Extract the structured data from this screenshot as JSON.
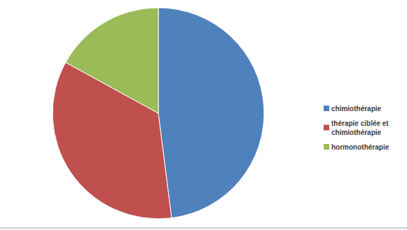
{
  "chart_data": {
    "type": "pie",
    "categories": [
      "chimiothérapie",
      "thérapie ciblée et chimiothérapie",
      "hormonothérapie"
    ],
    "values": [
      48,
      35,
      17
    ],
    "colors": [
      "#4f81bd",
      "#c0504d",
      "#9bbb59"
    ],
    "legend": "right"
  }
}
